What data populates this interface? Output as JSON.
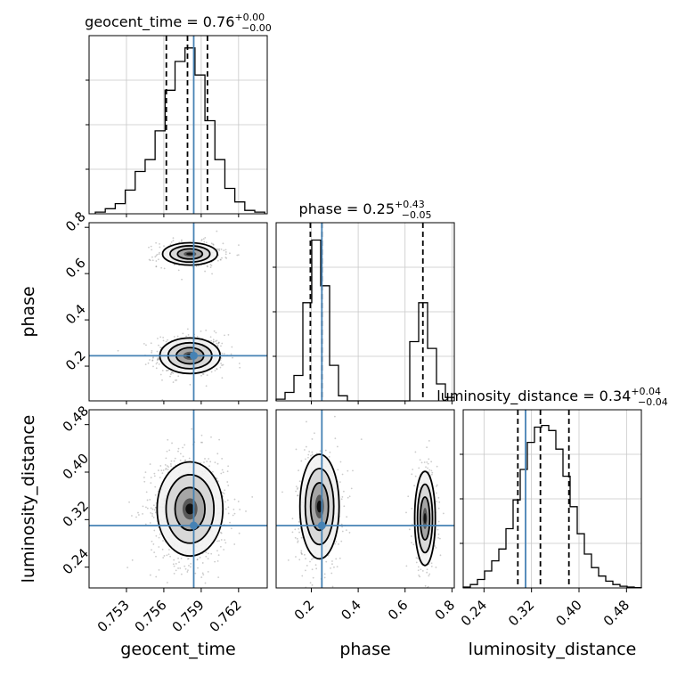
{
  "chart_data": {
    "type": "corner",
    "parameters": [
      "geocent_time",
      "phase",
      "luminosity_distance"
    ],
    "truths": {
      "geocent_time": 0.7584,
      "phase": 0.245,
      "luminosity_distance": 0.31
    },
    "colors": {
      "truth": "#4682b4",
      "hist": "#000000",
      "grid": "#c8c8c8",
      "scatter": "#8c8c8c"
    },
    "diagonal": [
      {
        "param": "geocent_time",
        "title": "geocent_time = 0.76",
        "title_sup": "+0.00",
        "title_sub": "−0.00",
        "xlim": [
          0.75,
          0.7643
        ],
        "quantiles": [
          0.7562,
          0.7579,
          0.7595
        ],
        "bins_x": [
          0.7505,
          0.7513,
          0.7521,
          0.7529,
          0.7537,
          0.7545,
          0.7553,
          0.7561,
          0.7569,
          0.7577,
          0.7585,
          0.7593,
          0.7601,
          0.7609,
          0.7617,
          0.7625,
          0.7633,
          0.7641
        ],
        "bins_y": [
          0.01,
          0.03,
          0.06,
          0.14,
          0.25,
          0.32,
          0.49,
          0.73,
          0.9,
          0.98,
          0.82,
          0.55,
          0.32,
          0.15,
          0.07,
          0.02,
          0.01
        ]
      },
      {
        "param": "phase",
        "title": "phase = 0.25",
        "title_sup": "+0.43",
        "title_sub": "−0.05",
        "xlim": [
          0.05,
          0.81
        ],
        "quantiles": [
          0.196,
          0.245,
          0.676
        ],
        "bins_x": [
          0.05,
          0.088,
          0.126,
          0.164,
          0.202,
          0.24,
          0.278,
          0.316,
          0.354,
          0.392,
          0.43,
          0.468,
          0.506,
          0.544,
          0.582,
          0.62,
          0.658,
          0.696,
          0.734,
          0.772,
          0.81
        ],
        "bins_y": [
          0.01,
          0.05,
          0.15,
          0.58,
          0.95,
          0.68,
          0.21,
          0.03,
          0.0,
          0.0,
          0.0,
          0.0,
          0.0,
          0.0,
          0.0,
          0.35,
          0.58,
          0.31,
          0.1,
          0.02
        ]
      },
      {
        "param": "luminosity_distance",
        "title": "luminosity_distance = 0.34",
        "title_sup": "+0.04",
        "title_sub": "−0.04",
        "xlim": [
          0.205,
          0.505
        ],
        "quantiles": [
          0.297,
          0.335,
          0.383
        ],
        "bins_x": [
          0.205,
          0.217,
          0.229,
          0.241,
          0.253,
          0.265,
          0.277,
          0.289,
          0.301,
          0.313,
          0.325,
          0.337,
          0.349,
          0.361,
          0.373,
          0.385,
          0.397,
          0.409,
          0.421,
          0.433,
          0.445,
          0.457,
          0.469,
          0.481,
          0.493,
          0.505
        ],
        "bins_y": [
          0.005,
          0.02,
          0.05,
          0.1,
          0.16,
          0.23,
          0.35,
          0.52,
          0.7,
          0.86,
          0.95,
          0.96,
          0.93,
          0.82,
          0.66,
          0.48,
          0.32,
          0.2,
          0.12,
          0.07,
          0.04,
          0.02,
          0.01,
          0.005,
          0.002
        ]
      }
    ],
    "pairs": [
      {
        "x": "geocent_time",
        "y": "phase",
        "xlim": [
          0.75,
          0.7643
        ],
        "ylim": [
          0.05,
          0.82
        ],
        "blobs": [
          {
            "cx": 0.7581,
            "cy": 0.245,
            "sx": 0.0011,
            "sy": 0.035,
            "weight": 0.6
          },
          {
            "cx": 0.7581,
            "cy": 0.685,
            "sx": 0.001,
            "sy": 0.022,
            "weight": 0.4
          }
        ]
      },
      {
        "x": "geocent_time",
        "y": "luminosity_distance",
        "xlim": [
          0.75,
          0.7643
        ],
        "ylim": [
          0.205,
          0.505
        ],
        "blobs": [
          {
            "cx": 0.7581,
            "cy": 0.338,
            "sx": 0.0012,
            "sy": 0.036,
            "weight": 1.0
          }
        ]
      },
      {
        "x": "phase",
        "y": "luminosity_distance",
        "xlim": [
          0.05,
          0.81
        ],
        "ylim": [
          0.205,
          0.505
        ],
        "blobs": [
          {
            "cx": 0.235,
            "cy": 0.342,
            "sx": 0.038,
            "sy": 0.04,
            "weight": 0.6
          },
          {
            "cx": 0.685,
            "cy": 0.322,
            "sx": 0.02,
            "sy": 0.036,
            "weight": 0.4
          }
        ]
      }
    ],
    "ticks": {
      "geocent_time": [
        0.753,
        0.756,
        0.759,
        0.762
      ],
      "phase_x": [
        0.2,
        0.4,
        0.6,
        0.8
      ],
      "phase_y": [
        0.2,
        0.4,
        0.6,
        0.8
      ],
      "luminosity_distance": [
        0.24,
        0.32,
        0.4,
        0.48
      ]
    },
    "tick_labels": {
      "geocent_time": [
        "0.753",
        "0.756",
        "0.759",
        "0.762"
      ],
      "phase_x": [
        "0.2",
        "0.4",
        "0.6",
        "0.8"
      ],
      "phase_y": [
        "0.2",
        "0.4",
        "0.6",
        "0.8"
      ],
      "luminosity_distance": [
        "0.24",
        "0.32",
        "0.40",
        "0.48"
      ]
    },
    "axis_labels": {
      "x": [
        "geocent_time",
        "phase",
        "luminosity_distance"
      ],
      "y": [
        "phase",
        "luminosity_distance"
      ]
    },
    "grid": true
  }
}
